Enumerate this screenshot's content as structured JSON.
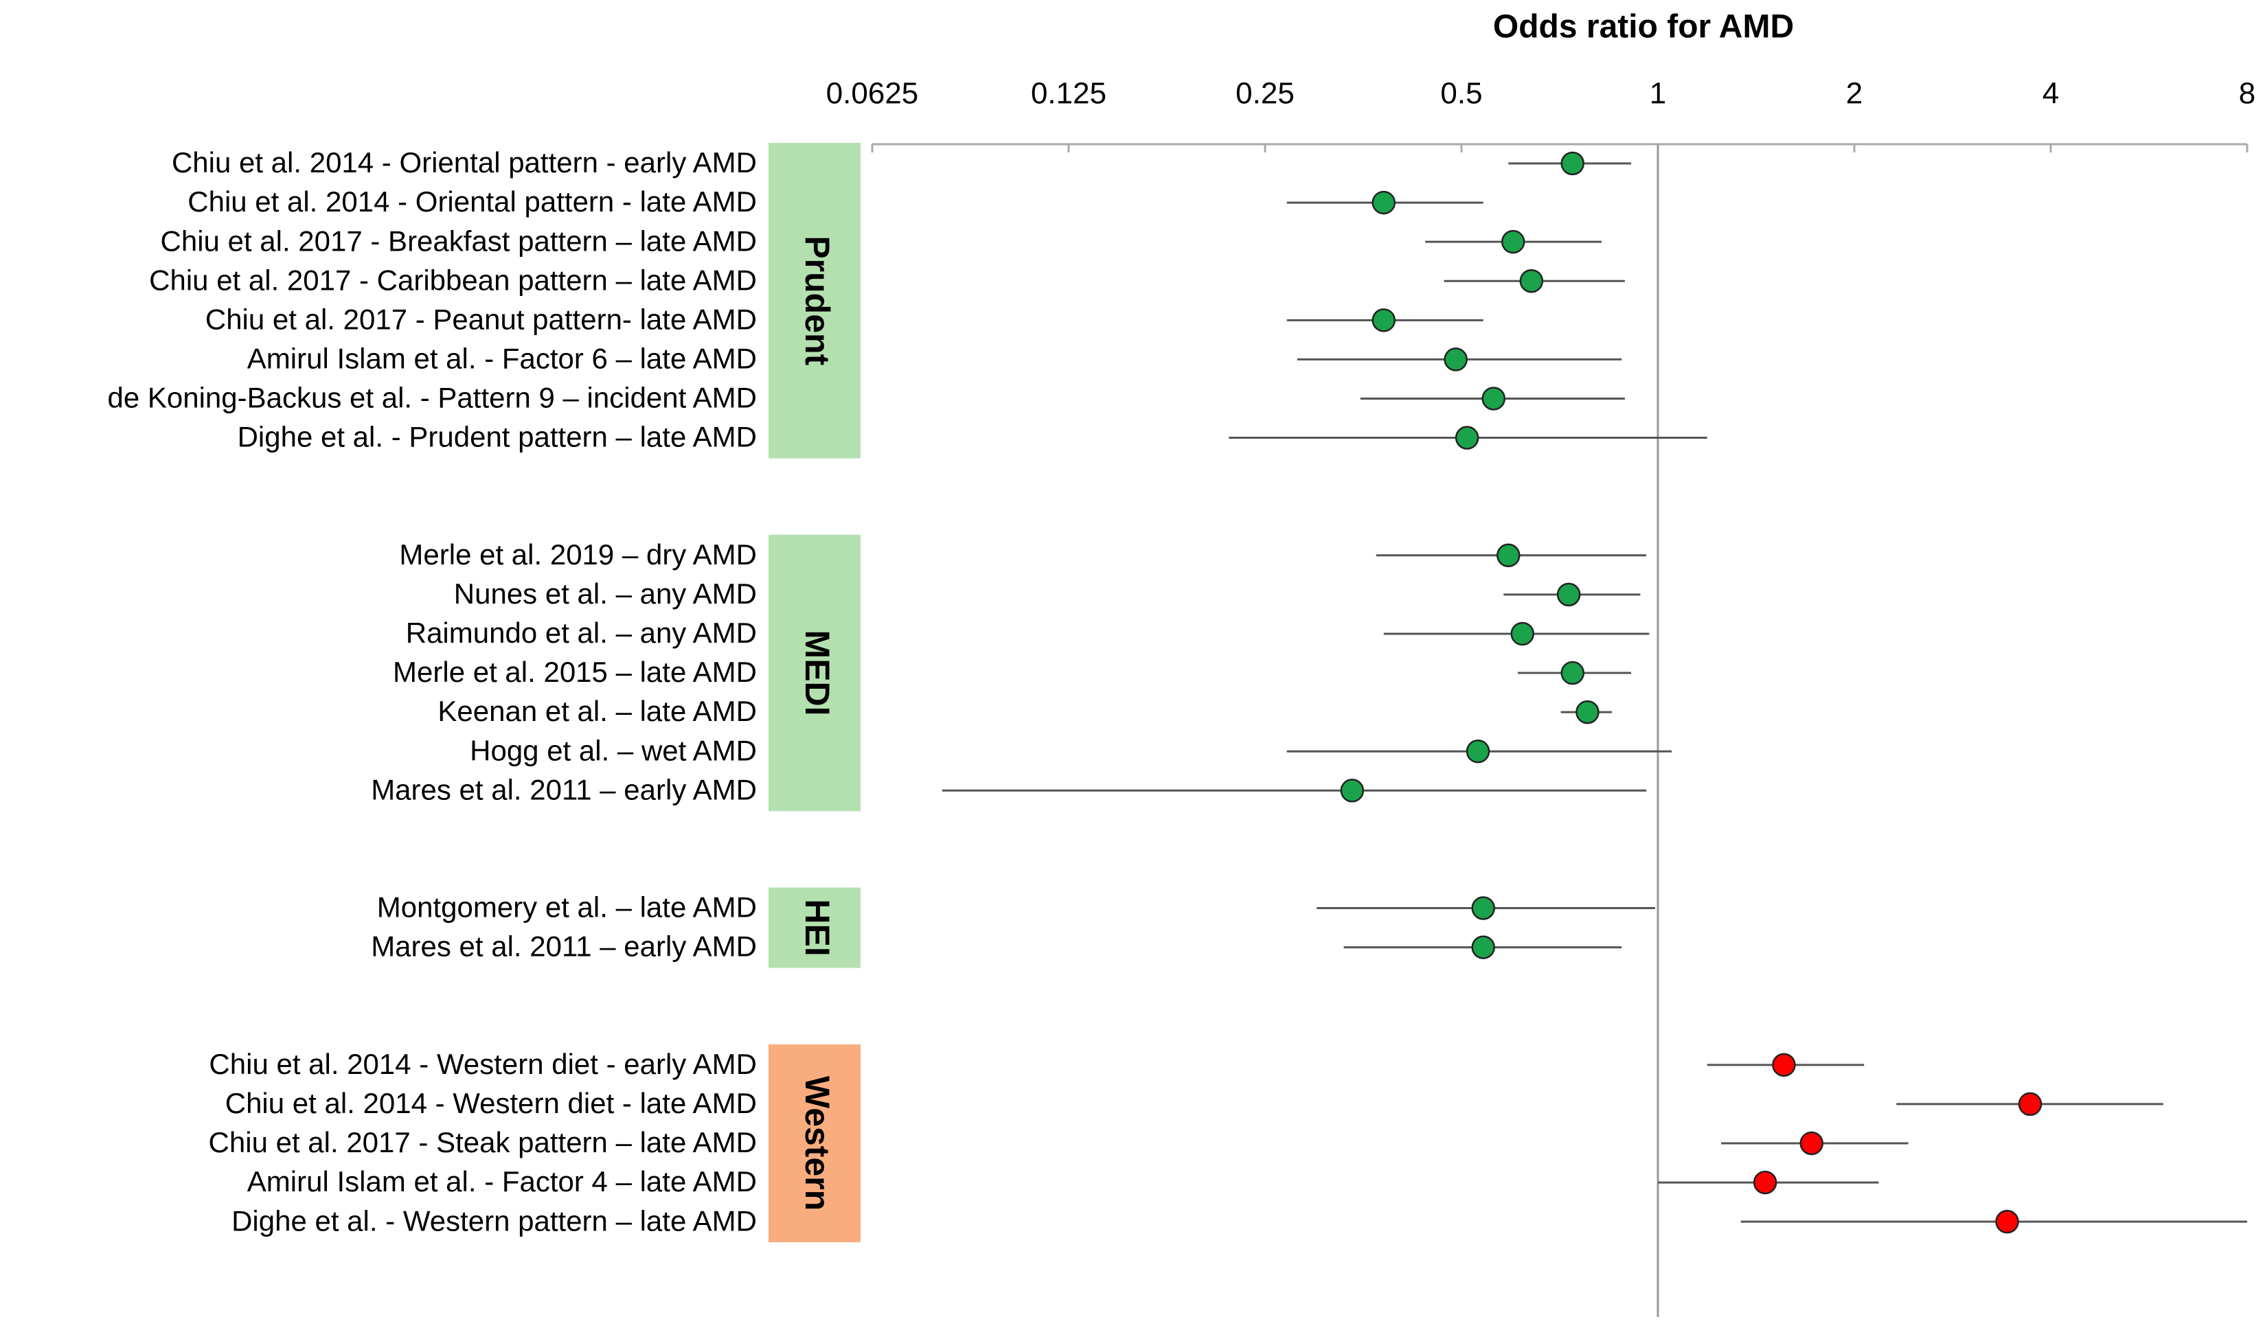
{
  "chart_data": {
    "type": "forest",
    "title": "Odds ratio for AMD",
    "log_scale": true,
    "xlim": [
      0.0625,
      8
    ],
    "xticks": [
      0.0625,
      0.125,
      0.25,
      0.5,
      1,
      2,
      4,
      8
    ],
    "reference_line": 1,
    "groups": [
      {
        "name": "Prudent",
        "color": "#1aa34a",
        "box_color": "#b4e0b0",
        "rows": [
          {
            "label": "Chiu et al. 2014 - Oriental pattern - early AMD",
            "or": 0.74,
            "lower": 0.59,
            "upper": 0.91
          },
          {
            "label": "Chiu et al. 2014 - Oriental pattern - late AMD",
            "or": 0.38,
            "lower": 0.27,
            "upper": 0.54
          },
          {
            "label": "Chiu et al. 2017 - Breakfast pattern – late AMD",
            "or": 0.6,
            "lower": 0.44,
            "upper": 0.82
          },
          {
            "label": "Chiu et al. 2017 - Caribbean pattern – late AMD",
            "or": 0.64,
            "lower": 0.47,
            "upper": 0.89
          },
          {
            "label": "Chiu et al. 2017 - Peanut pattern- late AMD",
            "or": 0.38,
            "lower": 0.27,
            "upper": 0.54
          },
          {
            "label": "Amirul Islam et al. - Factor 6 – late AMD",
            "or": 0.49,
            "lower": 0.28,
            "upper": 0.88
          },
          {
            "label": "de Koning-Backus et al. - Pattern 9 – incident AMD",
            "or": 0.56,
            "lower": 0.35,
            "upper": 0.89
          },
          {
            "label": "Dighe et al. - Prudent pattern – late AMD",
            "or": 0.51,
            "lower": 0.22,
            "upper": 1.19
          }
        ]
      },
      {
        "name": "MEDI",
        "color": "#1aa34a",
        "box_color": "#b4e0b0",
        "rows": [
          {
            "label": "Merle et al. 2019 – dry AMD",
            "or": 0.59,
            "lower": 0.37,
            "upper": 0.96
          },
          {
            "label": "Nunes et al. – any AMD",
            "or": 0.73,
            "lower": 0.58,
            "upper": 0.94
          },
          {
            "label": "Raimundo et al. – any AMD",
            "or": 0.62,
            "lower": 0.38,
            "upper": 0.97
          },
          {
            "label": "Merle et al. 2015 – late AMD",
            "or": 0.74,
            "lower": 0.61,
            "upper": 0.91
          },
          {
            "label": "Keenan et al. – late AMD",
            "or": 0.78,
            "lower": 0.71,
            "upper": 0.85
          },
          {
            "label": "Hogg et al. – wet AMD",
            "or": 0.53,
            "lower": 0.27,
            "upper": 1.05
          },
          {
            "label": "Mares et al. 2011 – early AMD",
            "or": 0.34,
            "lower": 0.08,
            "upper": 0.96
          }
        ]
      },
      {
        "name": "HEI",
        "color": "#1aa34a",
        "box_color": "#b4e0b0",
        "rows": [
          {
            "label": "Montgomery et al. – late AMD",
            "or": 0.54,
            "lower": 0.3,
            "upper": 0.99
          },
          {
            "label": "Mares et al. 2011 – early AMD",
            "or": 0.54,
            "lower": 0.33,
            "upper": 0.88
          }
        ]
      },
      {
        "name": "Western",
        "color": "#ff0000",
        "box_color": "#f9ad7f",
        "rows": [
          {
            "label": "Chiu et al. 2014 - Western diet - early AMD",
            "or": 1.56,
            "lower": 1.19,
            "upper": 2.07
          },
          {
            "label": "Chiu et al. 2014 - Western diet - late AMD",
            "or": 3.72,
            "lower": 2.32,
            "upper": 5.95
          },
          {
            "label": "Chiu et al. 2017 - Steak pattern – late AMD",
            "or": 1.72,
            "lower": 1.25,
            "upper": 2.42
          },
          {
            "label": "Amirul Islam et al. - Factor 4 – late AMD",
            "or": 1.46,
            "lower": 1.0,
            "upper": 2.18
          },
          {
            "label": "Dighe et al. - Western pattern – late AMD",
            "or": 3.43,
            "lower": 1.34,
            "upper": 8
          }
        ]
      }
    ]
  }
}
